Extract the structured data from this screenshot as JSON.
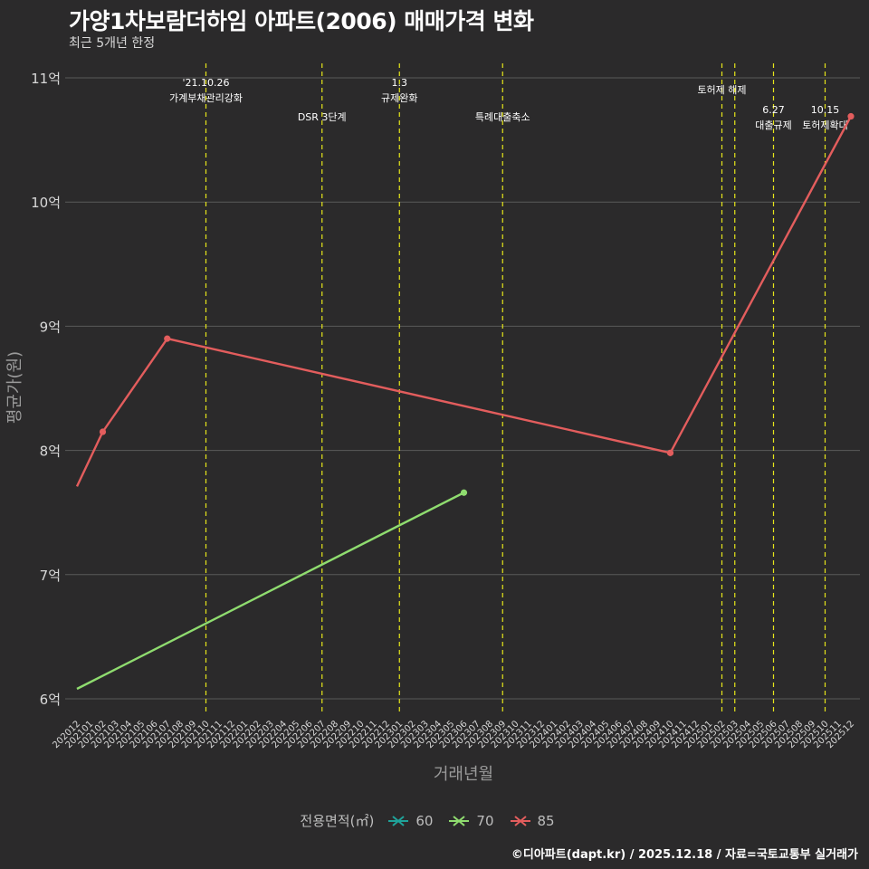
{
  "title": "가양1차보람더하임 아파트(2006) 매매가격 변화",
  "subtitle": "최근 5개년 한정",
  "caption": "©디아파트(dapt.kr) / 2025.12.18 / 자료=국토교통부 실거래가",
  "legend": {
    "title": "전용면적(㎡)",
    "items": [
      {
        "label": "60",
        "color": "#1fa39a"
      },
      {
        "label": "70",
        "color": "#8fdc6f"
      },
      {
        "label": "85",
        "color": "#e35d5d"
      }
    ]
  },
  "chart_data": {
    "type": "line",
    "title": "가양1차보람더하임 아파트(2006) 매매가격 변화",
    "xlabel": "거래년월",
    "ylabel": "평균가(원)",
    "ylim": [
      5.9,
      11.1
    ],
    "yticks": [
      6,
      7,
      8,
      9,
      10,
      11
    ],
    "ytick_labels": [
      "6억",
      "7억",
      "8억",
      "9억",
      "10억",
      "11억"
    ],
    "categories": [
      "202012",
      "202101",
      "202102",
      "202103",
      "202104",
      "202105",
      "202106",
      "202107",
      "202108",
      "202109",
      "202110",
      "202111",
      "202112",
      "202201",
      "202202",
      "202203",
      "202204",
      "202205",
      "202206",
      "202207",
      "202208",
      "202209",
      "202210",
      "202211",
      "202212",
      "202301",
      "202302",
      "202303",
      "202304",
      "202305",
      "202306",
      "202307",
      "202308",
      "202309",
      "202310",
      "202311",
      "202312",
      "202401",
      "202402",
      "202403",
      "202404",
      "202405",
      "202406",
      "202407",
      "202408",
      "202409",
      "202410",
      "202411",
      "202412",
      "202501",
      "202502",
      "202503",
      "202504",
      "202505",
      "202506",
      "202507",
      "202508",
      "202509",
      "202510",
      "202511",
      "202512"
    ],
    "series": [
      {
        "name": "60",
        "color": "#1fa39a",
        "points": []
      },
      {
        "name": "70",
        "color": "#8fdc6f",
        "points": [
          {
            "x": "202012",
            "y": 6.08
          },
          {
            "x": "202306",
            "y": 7.66
          }
        ]
      },
      {
        "name": "85",
        "color": "#e35d5d",
        "points": [
          {
            "x": "202012",
            "y": 7.71
          },
          {
            "x": "202102",
            "y": 8.15
          },
          {
            "x": "202107",
            "y": 8.9
          },
          {
            "x": "202410",
            "y": 7.98
          },
          {
            "x": "202512",
            "y": 10.69
          }
        ]
      }
    ],
    "markers": [
      {
        "x": "202107",
        "y": 8.9,
        "series": "85"
      },
      {
        "x": "202102",
        "y": 8.15,
        "series": "85"
      },
      {
        "x": "202410",
        "y": 7.98,
        "series": "85"
      },
      {
        "x": "202512",
        "y": 10.69,
        "series": "85"
      },
      {
        "x": "202306",
        "y": 7.66,
        "series": "70"
      }
    ],
    "events": [
      {
        "x": "202110",
        "lines": [
          "'21.10.26",
          "가계부채관리강화"
        ],
        "level": "high"
      },
      {
        "x": "202207",
        "lines": [
          "DSR 3단계"
        ],
        "level": "low"
      },
      {
        "x": "202301",
        "lines": [
          "1.3",
          "규제완화"
        ],
        "level": "high"
      },
      {
        "x": "202309",
        "lines": [
          "특례대출축소"
        ],
        "level": "low"
      },
      {
        "x": "202502",
        "lines": [
          "토허제 해제"
        ],
        "level": "mid"
      },
      {
        "x": "202503",
        "lines": [],
        "level": "mid"
      },
      {
        "x": "202506",
        "lines": [
          "6.27",
          "대출규제"
        ],
        "level": "low2"
      },
      {
        "x": "202510",
        "lines": [
          "10.15",
          "토허제확대"
        ],
        "level": "low2"
      }
    ]
  }
}
